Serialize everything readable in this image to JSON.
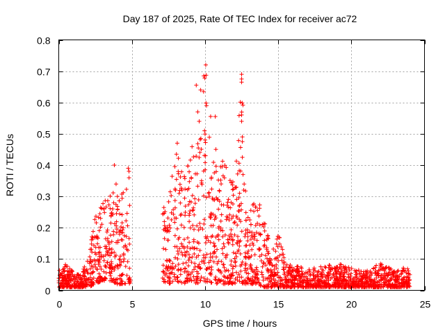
{
  "chart_data": {
    "type": "scatter",
    "title": "Day 187 of 2025, Rate Of TEC Index for receiver ac72",
    "xlabel": "GPS time / hours",
    "ylabel": "ROTI / TECUs",
    "xlim": [
      0,
      25
    ],
    "ylim": [
      0,
      0.8
    ],
    "x_ticks": [
      "0",
      "5",
      "10",
      "15",
      "20",
      "25"
    ],
    "y_ticks": [
      "0",
      "0.1",
      "0.2",
      "0.3",
      "0.4",
      "0.5",
      "0.6",
      "0.7",
      "0.8"
    ],
    "grid": true,
    "marker": "plus",
    "color": "#ff0000",
    "data_gap_hours": [
      4.9,
      7.1
    ],
    "envelope": [
      {
        "x": 0.0,
        "base": 0.01,
        "peak": 0.07
      },
      {
        "x": 0.5,
        "base": 0.01,
        "peak": 0.09
      },
      {
        "x": 1.0,
        "base": 0.01,
        "peak": 0.06
      },
      {
        "x": 1.5,
        "base": 0.01,
        "peak": 0.05
      },
      {
        "x": 2.0,
        "base": 0.01,
        "peak": 0.1
      },
      {
        "x": 2.5,
        "base": 0.02,
        "peak": 0.24
      },
      {
        "x": 3.0,
        "base": 0.03,
        "peak": 0.29
      },
      {
        "x": 3.5,
        "base": 0.03,
        "peak": 0.32
      },
      {
        "x": 4.0,
        "base": 0.02,
        "peak": 0.35
      },
      {
        "x": 4.5,
        "base": 0.02,
        "peak": 0.32
      },
      {
        "x": 4.9,
        "base": 0.02,
        "peak": 0.38
      },
      {
        "x": 7.1,
        "base": 0.03,
        "peak": 0.27
      },
      {
        "x": 7.5,
        "base": 0.02,
        "peak": 0.3
      },
      {
        "x": 8.0,
        "base": 0.03,
        "peak": 0.45
      },
      {
        "x": 8.5,
        "base": 0.02,
        "peak": 0.4
      },
      {
        "x": 9.0,
        "base": 0.03,
        "peak": 0.43
      },
      {
        "x": 9.5,
        "base": 0.02,
        "peak": 0.57
      },
      {
        "x": 10.0,
        "base": 0.03,
        "peak": 0.72
      },
      {
        "x": 10.5,
        "base": 0.02,
        "peak": 0.52
      },
      {
        "x": 11.0,
        "base": 0.02,
        "peak": 0.43
      },
      {
        "x": 11.5,
        "base": 0.02,
        "peak": 0.4
      },
      {
        "x": 12.0,
        "base": 0.02,
        "peak": 0.34
      },
      {
        "x": 12.5,
        "base": 0.02,
        "peak": 0.69
      },
      {
        "x": 13.0,
        "base": 0.02,
        "peak": 0.27
      },
      {
        "x": 13.5,
        "base": 0.02,
        "peak": 0.28
      },
      {
        "x": 14.0,
        "base": 0.01,
        "peak": 0.29
      },
      {
        "x": 14.5,
        "base": 0.01,
        "peak": 0.12
      },
      {
        "x": 15.0,
        "base": 0.01,
        "peak": 0.19
      },
      {
        "x": 15.5,
        "base": 0.01,
        "peak": 0.09
      },
      {
        "x": 16.0,
        "base": 0.01,
        "peak": 0.08
      },
      {
        "x": 17.0,
        "base": 0.01,
        "peak": 0.07
      },
      {
        "x": 18.0,
        "base": 0.01,
        "peak": 0.08
      },
      {
        "x": 19.0,
        "base": 0.01,
        "peak": 0.09
      },
      {
        "x": 20.0,
        "base": 0.01,
        "peak": 0.07
      },
      {
        "x": 21.0,
        "base": 0.01,
        "peak": 0.06
      },
      {
        "x": 22.0,
        "base": 0.01,
        "peak": 0.09
      },
      {
        "x": 23.0,
        "base": 0.01,
        "peak": 0.06
      },
      {
        "x": 24.0,
        "base": 0.01,
        "peak": 0.08
      }
    ],
    "outliers": [
      {
        "x": 9.4,
        "y": 0.655
      },
      {
        "x": 9.7,
        "y": 0.64
      },
      {
        "x": 9.9,
        "y": 0.635
      },
      {
        "x": 10.05,
        "y": 0.72
      },
      {
        "x": 10.1,
        "y": 0.59
      },
      {
        "x": 9.6,
        "y": 0.54
      },
      {
        "x": 10.7,
        "y": 0.555
      },
      {
        "x": 9.5,
        "y": 0.57
      },
      {
        "x": 12.5,
        "y": 0.69
      },
      {
        "x": 12.5,
        "y": 0.675
      },
      {
        "x": 12.5,
        "y": 0.665
      },
      {
        "x": 12.5,
        "y": 0.56
      },
      {
        "x": 12.5,
        "y": 0.54
      },
      {
        "x": 12.55,
        "y": 0.49
      },
      {
        "x": 12.55,
        "y": 0.475
      },
      {
        "x": 12.55,
        "y": 0.425
      },
      {
        "x": 3.8,
        "y": 0.4
      },
      {
        "x": 4.75,
        "y": 0.39
      },
      {
        "x": 4.8,
        "y": 0.38
      },
      {
        "x": 8.1,
        "y": 0.47
      }
    ]
  }
}
